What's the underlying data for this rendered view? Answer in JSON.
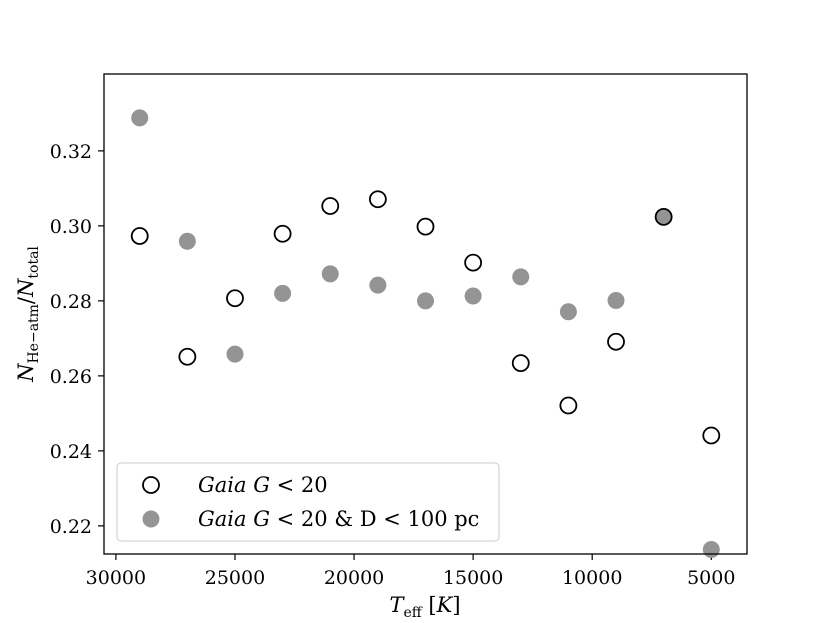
{
  "chart_data": {
    "type": "scatter",
    "xlabel": "T_eff [K]",
    "ylabel": "N_He-atm / N_total",
    "xlim": [
      30500,
      3500
    ],
    "ylim": [
      0.2125,
      0.3405
    ],
    "x_ticks": [
      30000,
      25000,
      20000,
      15000,
      10000,
      5000
    ],
    "y_ticks": [
      0.22,
      0.24,
      0.26,
      0.28,
      0.3,
      0.32
    ],
    "grid": false,
    "legend_position": "lower-left",
    "series": [
      {
        "name": "Gaia G < 20",
        "marker": "open-circle",
        "color": "#000000",
        "x": [
          29000,
          27000,
          25000,
          23000,
          21000,
          19000,
          17000,
          15000,
          13000,
          11000,
          9000,
          7000,
          5000
        ],
        "y": [
          0.2973,
          0.2651,
          0.2807,
          0.2979,
          0.3053,
          0.3071,
          0.2998,
          0.2902,
          0.2634,
          0.2521,
          0.2691,
          0.3024,
          0.2441
        ]
      },
      {
        "name": "Gaia G < 20 & D < 100 pc",
        "marker": "filled-circle",
        "color": "#949494",
        "x": [
          29000,
          27000,
          25000,
          23000,
          21000,
          19000,
          17000,
          15000,
          13000,
          11000,
          9000,
          7000,
          5000
        ],
        "y": [
          0.3288,
          0.2959,
          0.2658,
          0.282,
          0.2872,
          0.2842,
          0.28,
          0.2813,
          0.2864,
          0.2771,
          0.2801,
          0.3024,
          0.2137
        ]
      }
    ],
    "legend": {
      "items": [
        {
          "series": 0,
          "text_italic": "Gaia G",
          "text_rest": " < 20"
        },
        {
          "series": 1,
          "text_italic": "Gaia G",
          "text_rest": " < 20 & D < 100 pc"
        }
      ]
    }
  }
}
